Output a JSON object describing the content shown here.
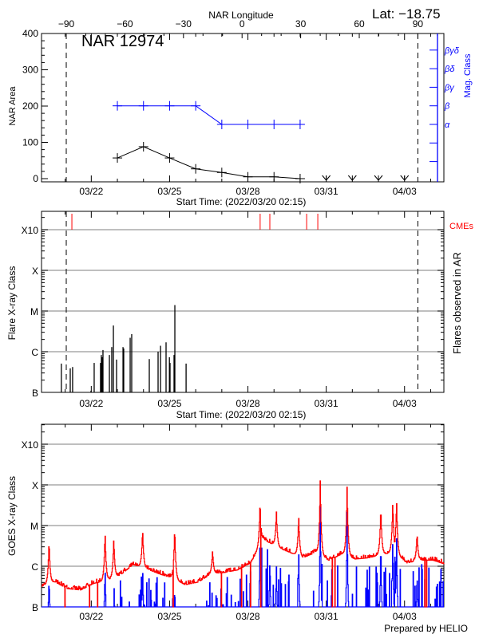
{
  "header": {
    "lat_label": "Lat: −18.75",
    "region_title": "NAR 12974",
    "top_axis_label": "NAR Longitude"
  },
  "colors": {
    "area": "#000000",
    "mag_class": "#0000ff",
    "cme": "#ff0000",
    "goes_long": "#ff0000",
    "goes_short": "#0000ff",
    "grid": "#999999"
  },
  "chart_data": [
    {
      "type": "line",
      "start_time": "2022-03-20 02:15",
      "xlabel": "Start Time: (2022/03/20 02:15)",
      "x_ticks": [
        "03/22",
        "03/25",
        "03/28",
        "03/31",
        "04/03"
      ],
      "ylabel": "NAR Area",
      "ylim": [
        0,
        400
      ],
      "y_ticks": [
        "0",
        "100",
        "200",
        "300",
        "400"
      ],
      "top_axis": {
        "label": "NAR Longitude",
        "ticks": [
          "−90",
          "−60",
          "−30",
          "0",
          "30",
          "60",
          "90"
        ],
        "limb_times": [
          "2022-03-21 01:00",
          "2022-04-03 12:15"
        ]
      },
      "right_axis": {
        "label": "Mag. Class",
        "classes": [
          "α",
          "β",
          "βγ",
          "βδ",
          "βγδ"
        ]
      },
      "area_series": {
        "dates": [
          "2022-03-23 00:00",
          "2022-03-24 00:00",
          "2022-03-25 00:00",
          "2022-03-26 00:00",
          "2022-03-27 00:00",
          "2022-03-28 00:00",
          "2022-03-29 00:00",
          "2022-03-30 00:00"
        ],
        "values": [
          57,
          88,
          57,
          27,
          17,
          5,
          5,
          0
        ],
        "below_zero_dates": [
          "2022-03-31 00:00",
          "2022-04-01 00:00",
          "2022-04-02 00:00",
          "2022-04-03 00:00"
        ]
      },
      "mag_series": {
        "dates": [
          "2022-03-23 00:00",
          "2022-03-24 00:00",
          "2022-03-25 00:00",
          "2022-03-26 00:00",
          "2022-03-27 00:00",
          "2022-03-28 00:00",
          "2022-03-29 00:00",
          "2022-03-30 00:00"
        ],
        "values": [
          "β",
          "β",
          "β",
          "β",
          "α",
          "α",
          "α",
          "α"
        ]
      }
    },
    {
      "type": "bar",
      "xlabel": "Start Time: (2022/03/20 02:15)",
      "x_ticks": [
        "03/22",
        "03/25",
        "03/28",
        "03/31",
        "04/03"
      ],
      "ylabel": "Flare X-ray Class",
      "right_label": "Flares observed in AR",
      "y_scale": "log",
      "y_ticks": [
        "B",
        "C",
        "M",
        "X",
        "X10"
      ],
      "cme_label": "CMEs",
      "cmes": [
        "2022-03-21 06:10",
        "2022-03-28 11:15",
        "2022-03-28 20:10",
        "2022-03-30 06:00",
        "2022-03-30 16:15"
      ],
      "flares": [
        [
          "2022-03-20 20:30",
          "B5.1"
        ],
        [
          "2022-03-21 04:40",
          "B3.9"
        ],
        [
          "2022-03-21 06:50",
          "B4.2"
        ],
        [
          "2022-03-21 23:45",
          "B1.1"
        ],
        [
          "2022-03-22 02:40",
          "B5.3"
        ],
        [
          "2022-03-22 08:30",
          "B5.3"
        ],
        [
          "2022-03-22 09:15",
          "B8.3"
        ],
        [
          "2022-03-22 10:00",
          "B7.3"
        ],
        [
          "2022-03-22 10:45",
          "C1.1"
        ],
        [
          "2022-03-22 16:40",
          "B8.3"
        ],
        [
          "2022-03-22 18:50",
          "C1.3"
        ],
        [
          "2022-03-22 20:20",
          "C4.4"
        ],
        [
          "2022-03-22 23:15",
          "B6.4"
        ],
        [
          "2022-03-23 05:10",
          "C1.3"
        ],
        [
          "2022-03-23 05:50",
          "C1.2"
        ],
        [
          "2022-03-23 11:45",
          "C2.2"
        ],
        [
          "2022-03-23 13:10",
          "C2.7"
        ],
        [
          "2022-03-24 05:20",
          "B6.6"
        ],
        [
          "2022-03-24 13:25",
          "C1.0"
        ],
        [
          "2022-03-24 15:40",
          "C1.4"
        ],
        [
          "2022-03-24 20:45",
          "C1.7"
        ],
        [
          "2022-03-24 23:40",
          "B1.1"
        ],
        [
          "2022-03-24 23:50",
          "B7.3"
        ],
        [
          "2022-03-25 00:25",
          "B5.3"
        ],
        [
          "2022-03-25 04:05",
          "B8.3"
        ],
        [
          "2022-03-25 04:50",
          "M1.4"
        ],
        [
          "2022-03-25 15:10",
          "B5.1"
        ]
      ]
    },
    {
      "type": "line",
      "ylabel": "GOES X-ray Class",
      "y_scale": "log",
      "y_ticks": [
        "B",
        "C",
        "M",
        "X",
        "X10"
      ],
      "x_ticks": [
        "03/22",
        "03/25",
        "03/28",
        "03/31",
        "04/03"
      ],
      "long_channel_baseline": {
        "interval_hours": 12,
        "values": [
          "B3.2",
          "B4.1",
          "B2.8",
          "B2.6",
          "B3.8",
          "B4.4",
          "B6.0",
          "C1.1",
          "B8.7",
          "B6.5",
          "B5.1",
          "B3.5",
          "B4.1",
          "B6.5",
          "B7.0",
          "B8.1",
          "C1.2",
          "C4.6",
          "C3.0",
          "C2.2",
          "C1.6",
          "C2.2",
          "C1.4",
          "C2.0",
          "C1.5",
          "C1.6",
          "C1.9",
          "C2.2",
          "C1.2",
          "C1.4",
          "C1.4",
          "C1.1"
        ]
      },
      "long_channel_peaks": [
        [
          "2022-03-20 09:00",
          "C4.6"
        ],
        [
          "2022-03-22 12:30",
          "C7.5"
        ],
        [
          "2022-03-22 20:30",
          "C5.0"
        ],
        [
          "2022-03-23 23:00",
          "C8.7"
        ],
        [
          "2022-03-25 04:30",
          "M1.0"
        ],
        [
          "2022-03-26 15:20",
          "C2.5"
        ],
        [
          "2022-03-28 11:00",
          "M4.2"
        ],
        [
          "2022-03-29 02:00",
          "M2.3"
        ],
        [
          "2022-03-29 22:30",
          "M1.8"
        ],
        [
          "2022-03-30 18:20",
          "X1.4"
        ],
        [
          "2022-03-31 19:00",
          "X1.0"
        ],
        [
          "2022-04-02 02:00",
          "M3.1"
        ],
        [
          "2022-04-02 13:00",
          "M4.3"
        ],
        [
          "2022-04-02 16:30",
          "M4.6"
        ],
        [
          "2022-04-03 11:20",
          "C6.7"
        ]
      ],
      "short_channel_peaks": [
        [
          "2022-03-20 09:00",
          "B5.7"
        ],
        [
          "2022-03-22 12:30",
          "C1.1"
        ],
        [
          "2022-03-23 23:00",
          "C1.2"
        ],
        [
          "2022-03-25 04:30",
          "B3.0"
        ],
        [
          "2022-03-28 11:00",
          "C9.2"
        ],
        [
          "2022-03-28 20:00",
          "C2.0"
        ],
        [
          "2022-03-29 02:00",
          "C1.1"
        ],
        [
          "2022-03-29 22:30",
          "C3.0"
        ],
        [
          "2022-03-30 18:20",
          "M4.0"
        ],
        [
          "2022-03-31 19:00",
          "M2.8"
        ],
        [
          "2022-04-02 02:00",
          "C6.0"
        ],
        [
          "2022-04-02 13:00",
          "C7.0"
        ],
        [
          "2022-04-02 16:30",
          "C9.0"
        ],
        [
          "2022-04-03 11:20",
          "B8.0"
        ]
      ]
    }
  ],
  "footer": {
    "credit": "Prepared by HELIO"
  }
}
